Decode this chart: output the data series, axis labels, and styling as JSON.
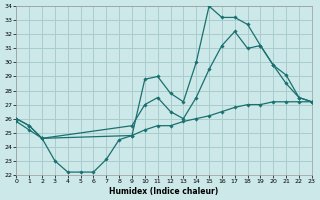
{
  "xlabel": "Humidex (Indice chaleur)",
  "bg_color": "#cce8e8",
  "grid_color": "#aacccc",
  "line_color": "#1a7070",
  "xlim": [
    0,
    23
  ],
  "ylim": [
    22,
    34
  ],
  "lineA_x": [
    0,
    1,
    2,
    3,
    4,
    5,
    6,
    7,
    8,
    9,
    10,
    11,
    12,
    13,
    14,
    15,
    16,
    17,
    18,
    19,
    20,
    21,
    22,
    23
  ],
  "lineA_y": [
    26.0,
    25.5,
    24.6,
    23.0,
    22.2,
    22.2,
    22.2,
    23.1,
    24.5,
    24.8,
    28.8,
    29.0,
    27.8,
    27.2,
    30.0,
    34.0,
    33.2,
    33.2,
    32.7,
    31.2,
    29.8,
    29.1,
    27.5,
    27.2
  ],
  "lineB_x": [
    0,
    1,
    2,
    9,
    10,
    11,
    12,
    13,
    14,
    15,
    16,
    17,
    18,
    19,
    20,
    21,
    22,
    23
  ],
  "lineB_y": [
    26.0,
    25.5,
    24.6,
    25.5,
    27.0,
    27.5,
    26.5,
    26.0,
    27.5,
    29.5,
    31.2,
    32.2,
    31.0,
    31.2,
    29.8,
    28.5,
    27.5,
    27.2
  ],
  "lineC_x": [
    0,
    1,
    2,
    9,
    10,
    11,
    12,
    13,
    14,
    15,
    16,
    17,
    18,
    19,
    20,
    21,
    22,
    23
  ],
  "lineC_y": [
    25.8,
    25.2,
    24.6,
    24.8,
    25.2,
    25.5,
    25.5,
    25.8,
    26.0,
    26.2,
    26.5,
    26.8,
    27.0,
    27.0,
    27.2,
    27.2,
    27.2,
    27.2
  ]
}
